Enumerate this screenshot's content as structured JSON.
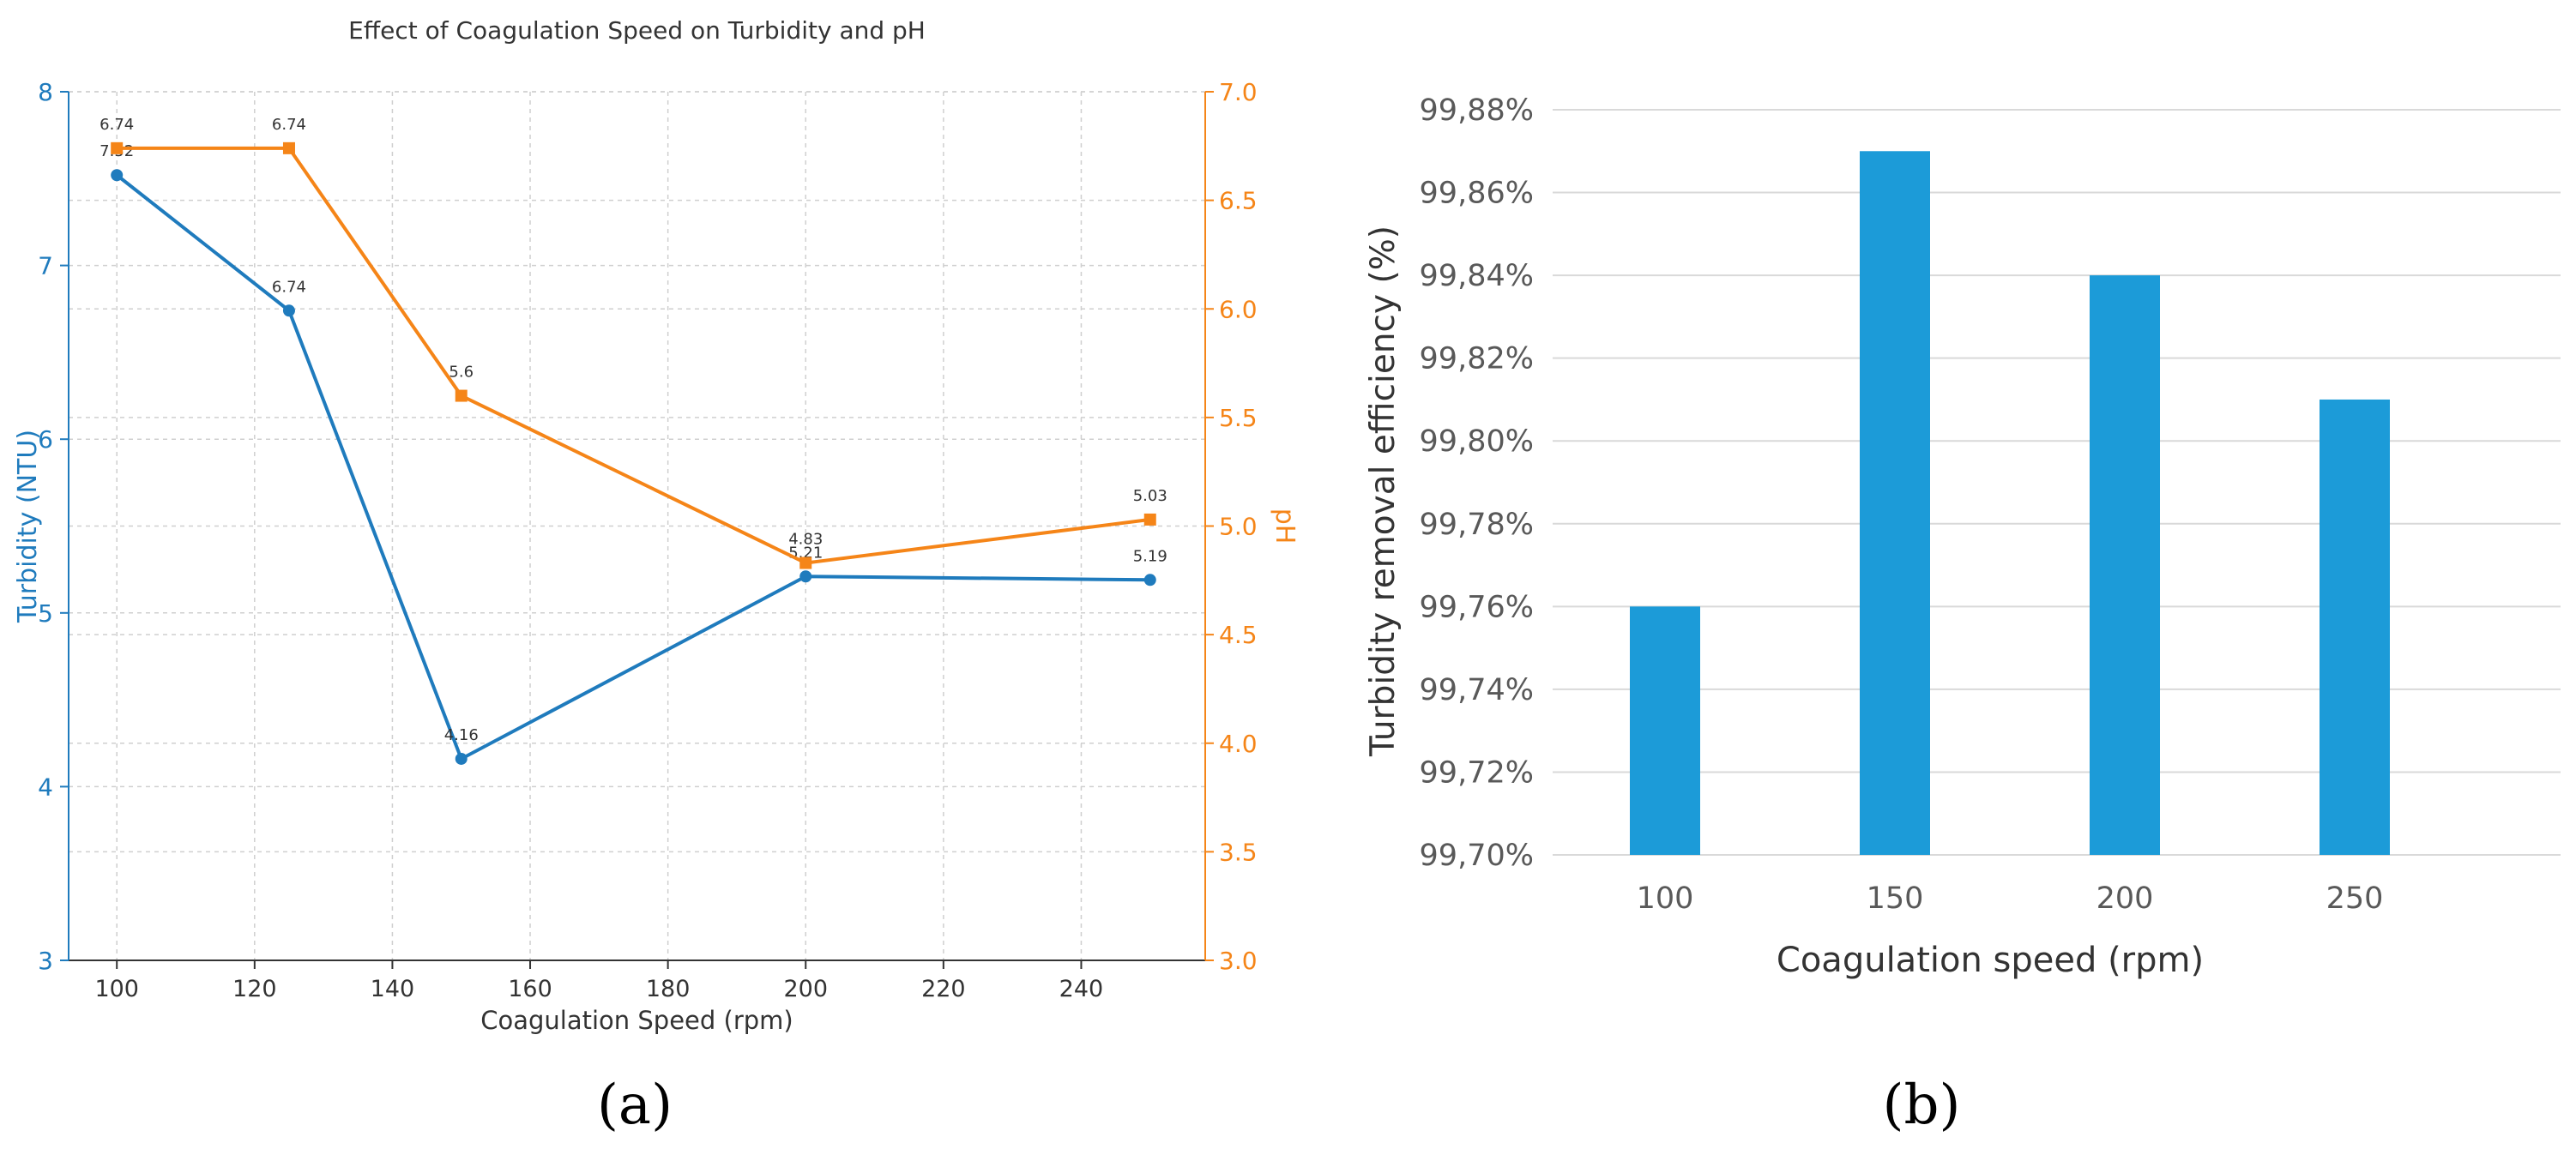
{
  "chart_data": [
    {
      "panel": "(a)",
      "type": "line",
      "title": "Effect of Coagulation Speed on Turbidity and pH",
      "xlabel": "Coagulation Speed (rpm)",
      "xlim": [
        93,
        258
      ],
      "xticks": [
        100,
        120,
        140,
        160,
        180,
        200,
        220,
        240
      ],
      "grid": true,
      "y_left": {
        "label": "Turbidity (NTU)",
        "lim": [
          3,
          8
        ],
        "ticks": [
          "3",
          "4",
          "5",
          "6",
          "7",
          "8"
        ],
        "color": "#1f7bbd"
      },
      "y_right": {
        "label": "pH",
        "lim": [
          3.0,
          7.0
        ],
        "ticks": [
          "3.0",
          "3.5",
          "4.0",
          "4.5",
          "5.0",
          "5.5",
          "6.0",
          "6.5",
          "7.0"
        ],
        "color": "#f58518"
      },
      "series": [
        {
          "axis": "left",
          "color": "#1f7bbd",
          "marker": "circle",
          "x": [
            100,
            125,
            150,
            200,
            250
          ],
          "values": [
            7.52,
            6.74,
            4.16,
            5.21,
            5.19
          ],
          "labels": [
            "7.52",
            "6.74",
            "4.16",
            "5.21",
            "5.19"
          ]
        },
        {
          "axis": "right",
          "color": "#f58518",
          "marker": "square",
          "x": [
            100,
            125,
            150,
            200,
            250
          ],
          "values": [
            6.74,
            6.74,
            5.6,
            4.83,
            5.03
          ],
          "labels": [
            "6.74",
            "6.74",
            "5.6",
            "4.83",
            "5.03"
          ]
        }
      ]
    },
    {
      "panel": "(b)",
      "type": "bar",
      "xlabel": "Coagulation speed (rpm)",
      "ylabel": "Turbidity removal efficiency (%)",
      "categories": [
        "100",
        "150",
        "200",
        "250"
      ],
      "values": [
        99.76,
        99.87,
        99.84,
        99.81
      ],
      "ylim": [
        99.7,
        99.88
      ],
      "yticks": [
        "99,70%",
        "99,72%",
        "99,74%",
        "99,76%",
        "99,78%",
        "99,80%",
        "99,82%",
        "99,84%",
        "99,86%",
        "99,88%"
      ],
      "bar_color": "#1c9bd8",
      "grid": true
    }
  ]
}
